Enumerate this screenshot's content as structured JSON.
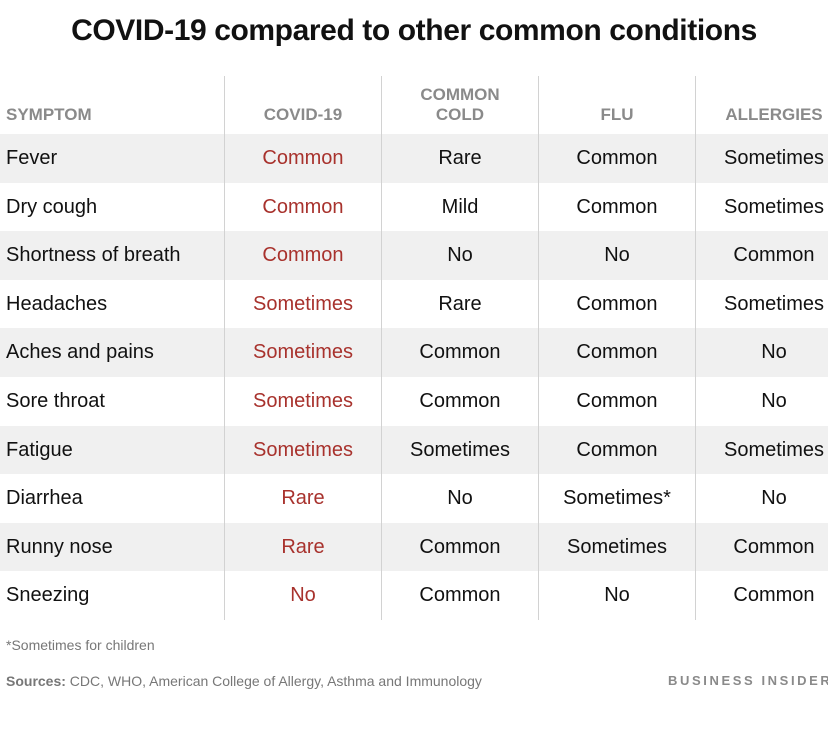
{
  "title": "COVID-19 compared to other common conditions",
  "headers": {
    "symptom": "SYMPTOM",
    "covid": "COVID-19",
    "cold_line1": "COMMON",
    "cold_line2": "COLD",
    "flu": "FLU",
    "allergies": "ALLERGIES"
  },
  "rows": [
    {
      "symptom": "Fever",
      "covid": "Common",
      "cold": "Rare",
      "flu": "Common",
      "allergies": "Sometimes"
    },
    {
      "symptom": "Dry cough",
      "covid": "Common",
      "cold": "Mild",
      "flu": "Common",
      "allergies": "Sometimes"
    },
    {
      "symptom": "Shortness of breath",
      "covid": "Common",
      "cold": "No",
      "flu": "No",
      "allergies": "Common"
    },
    {
      "symptom": "Headaches",
      "covid": "Sometimes",
      "cold": "Rare",
      "flu": "Common",
      "allergies": "Sometimes"
    },
    {
      "symptom": "Aches and pains",
      "covid": "Sometimes",
      "cold": "Common",
      "flu": "Common",
      "allergies": "No"
    },
    {
      "symptom": "Sore throat",
      "covid": "Sometimes",
      "cold": "Common",
      "flu": "Common",
      "allergies": "No"
    },
    {
      "symptom": "Fatigue",
      "covid": "Sometimes",
      "cold": "Sometimes",
      "flu": "Common",
      "allergies": "Sometimes"
    },
    {
      "symptom": "Diarrhea",
      "covid": "Rare",
      "cold": "No",
      "flu": "Sometimes*",
      "allergies": "No"
    },
    {
      "symptom": "Runny nose",
      "covid": "Rare",
      "cold": "Common",
      "flu": "Sometimes",
      "allergies": "Common"
    },
    {
      "symptom": "Sneezing",
      "covid": "No",
      "cold": "Common",
      "flu": "No",
      "allergies": "Common"
    }
  ],
  "footnote": "*Sometimes for children",
  "sources_label": "Sources:",
  "sources_text": " CDC, WHO,  American College of Allergy, Asthma and Immunology",
  "brand": "BUSINESS INSIDER",
  "colors": {
    "covid_text": "#a8322d",
    "header_text": "#8a8a8a",
    "alt_row": "#f0f0f0"
  }
}
